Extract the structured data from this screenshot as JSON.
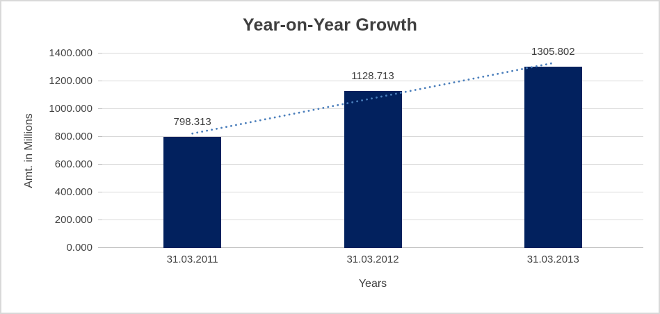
{
  "chart": {
    "title": "Year-on-Year Growth",
    "y_axis_title": "Amt. in Millions",
    "x_axis_title": "Years"
  },
  "chart_data": {
    "type": "bar",
    "title": "Year-on-Year Growth",
    "categories": [
      "31.03.2011",
      "31.03.2012",
      "31.03.2013"
    ],
    "values": [
      798.313,
      1128.713,
      1305.802
    ],
    "data_labels": [
      "798.313",
      "1128.713",
      "1305.802"
    ],
    "xlabel": "Years",
    "ylabel": "Amt. in Millions",
    "ylim": [
      0,
      1400
    ],
    "ytick_step": 200,
    "ytick_labels": [
      "0.000",
      "200.000",
      "400.000",
      "600.000",
      "800.000",
      "1000.000",
      "1200.000",
      "1400.000"
    ],
    "grid": true,
    "legend": "none",
    "trendline": {
      "type": "linear",
      "style": "dotted"
    }
  },
  "colors": {
    "bar": "#02215e",
    "trendline": "#4a7ebb",
    "gridline": "#d9d9d9",
    "axis_line": "#bfbfbf",
    "text": "#3f3f3f"
  }
}
